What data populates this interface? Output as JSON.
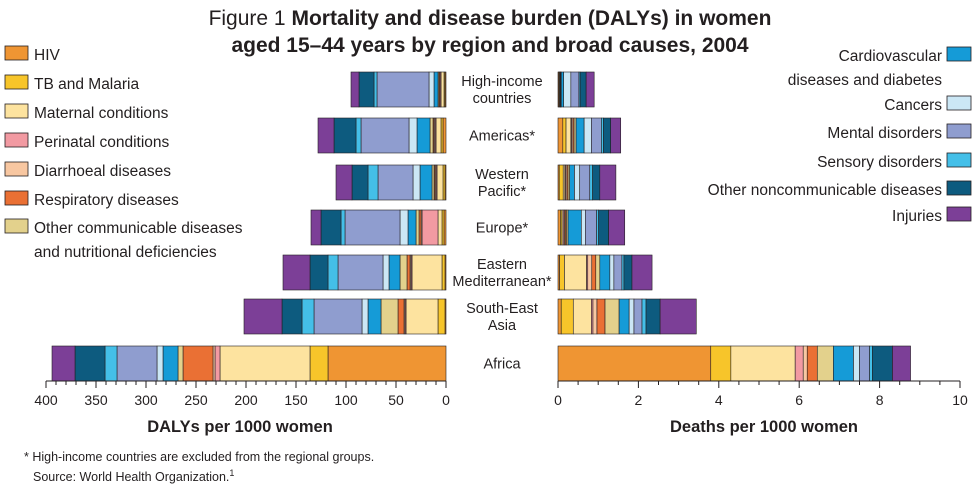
{
  "figure": {
    "title_prefix": "Figure 1",
    "title_line1_bold": "Mortality and disease burden (DALYs) in women",
    "title_line2_bold": "aged 15–44 years by region and broad causes, 2004",
    "footnote": "* High-income countries are excluded from the regional groups.",
    "source": "Source: World Health Organization.",
    "source_ref": "1"
  },
  "colors": {
    "hiv": "#ef9533",
    "tb_malaria": "#f7c52a",
    "maternal": "#fde39f",
    "perinatal": "#f29aa2",
    "diarrhoeal": "#f8c7a1",
    "respiratory": "#ea7034",
    "other_communicable": "#e3d18c",
    "cardiovascular": "#159bd7",
    "cancers": "#cbe7f5",
    "mental": "#8f9dcf",
    "sensory": "#44bfe8",
    "other_noncommunicable": "#0d5b7f",
    "injuries": "#7c3f97"
  },
  "chart_data": [
    {
      "type": "bar",
      "orientation": "horizontal",
      "stacked": true,
      "xlabel": "DALYs per 1000 women",
      "xlim": [
        0,
        400
      ],
      "x_reversed": true,
      "xticks": [
        400,
        350,
        300,
        250,
        200,
        150,
        100,
        50,
        0
      ],
      "categories": [
        "High-income countries",
        "Americas*",
        "Western Pacific*",
        "Europe*",
        "Eastern Mediterranean*",
        "South-East Asia",
        "Africa"
      ],
      "series": [
        {
          "name": "HIV",
          "key": "hiv",
          "values": [
            1,
            3,
            1,
            2,
            1,
            1,
            118
          ]
        },
        {
          "name": "TB and Malaria",
          "key": "tb_malaria",
          "values": [
            1,
            2,
            2,
            2,
            3,
            7,
            18
          ]
        },
        {
          "name": "Maternal conditions",
          "key": "maternal",
          "values": [
            3,
            5,
            6,
            4,
            30,
            32,
            90
          ]
        },
        {
          "name": "Perinatal conditions",
          "key": "perinatal",
          "values": [
            1,
            1,
            1,
            16,
            1,
            1,
            5
          ]
        },
        {
          "name": "Diarrhoeal diseases",
          "key": "diarrhoeal",
          "values": [
            0,
            1,
            1,
            1,
            1,
            1,
            2
          ]
        },
        {
          "name": "Respiratory diseases",
          "key": "respiratory",
          "values": [
            1,
            1,
            1,
            2,
            3,
            6,
            30
          ]
        },
        {
          "name": "Other communicable diseases and nutritional deficiencies",
          "key": "other_communicable",
          "values": [
            1,
            3,
            2,
            3,
            7,
            17,
            5
          ]
        },
        {
          "name": "Cardiovascular diseases and diabetes",
          "key": "cardiovascular",
          "values": [
            4,
            13,
            12,
            8,
            11,
            13,
            15
          ]
        },
        {
          "name": "Cancers",
          "key": "cancers",
          "values": [
            5,
            8,
            7,
            8,
            6,
            6,
            6
          ]
        },
        {
          "name": "Mental disorders",
          "key": "mental",
          "values": [
            52,
            48,
            35,
            55,
            45,
            48,
            40
          ]
        },
        {
          "name": "Sensory disorders",
          "key": "sensory",
          "values": [
            3,
            5,
            10,
            4,
            10,
            12,
            12
          ]
        },
        {
          "name": "Other noncommunicable diseases",
          "key": "other_noncommunicable",
          "values": [
            15,
            22,
            16,
            20,
            18,
            20,
            30
          ]
        },
        {
          "name": "Injuries",
          "key": "injuries",
          "values": [
            8,
            16,
            16,
            10,
            27,
            38,
            23
          ]
        }
      ]
    },
    {
      "type": "bar",
      "orientation": "horizontal",
      "stacked": true,
      "xlabel": "Deaths per 1000 women",
      "xlim": [
        0,
        10
      ],
      "xticks": [
        0,
        2,
        4,
        6,
        8,
        10
      ],
      "categories": [
        "High-income countries",
        "Americas*",
        "Western Pacific*",
        "Europe*",
        "Eastern Mediterranean*",
        "South-East Asia",
        "Africa"
      ],
      "series": [
        {
          "name": "HIV",
          "key": "hiv",
          "values": [
            0.02,
            0.12,
            0.03,
            0.06,
            0.04,
            0.08,
            3.8
          ]
        },
        {
          "name": "TB and Malaria",
          "key": "tb_malaria",
          "values": [
            0.01,
            0.08,
            0.1,
            0.04,
            0.12,
            0.3,
            0.5
          ]
        },
        {
          "name": "Maternal conditions",
          "key": "maternal",
          "values": [
            0.02,
            0.12,
            0.04,
            0.03,
            0.55,
            0.45,
            1.6
          ]
        },
        {
          "name": "Perinatal conditions",
          "key": "perinatal",
          "values": [
            0.01,
            0.02,
            0.02,
            0.03,
            0.03,
            0.04,
            0.2
          ]
        },
        {
          "name": "Diarrhoeal diseases",
          "key": "diarrhoeal",
          "values": [
            0,
            0.03,
            0.03,
            0.02,
            0.1,
            0.1,
            0.1
          ]
        },
        {
          "name": "Respiratory diseases",
          "key": "respiratory",
          "values": [
            0.01,
            0.03,
            0.03,
            0.03,
            0.1,
            0.2,
            0.25
          ]
        },
        {
          "name": "Other communicable diseases and nutritional deficiencies",
          "key": "other_communicable",
          "values": [
            0.01,
            0.05,
            0.04,
            0.04,
            0.1,
            0.35,
            0.4
          ]
        },
        {
          "name": "Cardiovascular diseases and diabetes",
          "key": "cardiovascular",
          "values": [
            0.06,
            0.2,
            0.12,
            0.33,
            0.25,
            0.25,
            0.5
          ]
        },
        {
          "name": "Cancers",
          "key": "cancers",
          "values": [
            0.18,
            0.18,
            0.13,
            0.1,
            0.1,
            0.12,
            0.15
          ]
        },
        {
          "name": "Mental disorders",
          "key": "mental",
          "values": [
            0.2,
            0.25,
            0.25,
            0.28,
            0.2,
            0.2,
            0.25
          ]
        },
        {
          "name": "Sensory disorders",
          "key": "sensory",
          "values": [
            0.03,
            0.05,
            0.07,
            0.05,
            0.05,
            0.1,
            0.07
          ]
        },
        {
          "name": "Other noncommunicable diseases",
          "key": "other_noncommunicable",
          "values": [
            0.15,
            0.18,
            0.18,
            0.25,
            0.2,
            0.35,
            0.5
          ]
        },
        {
          "name": "Injuries",
          "key": "injuries",
          "values": [
            0.2,
            0.25,
            0.4,
            0.4,
            0.5,
            0.9,
            0.45
          ]
        }
      ]
    }
  ],
  "legend_left": [
    {
      "key": "hiv",
      "lines": [
        "HIV"
      ]
    },
    {
      "key": "tb_malaria",
      "lines": [
        "TB and Malaria"
      ]
    },
    {
      "key": "maternal",
      "lines": [
        "Maternal conditions"
      ]
    },
    {
      "key": "perinatal",
      "lines": [
        "Perinatal conditions"
      ]
    },
    {
      "key": "diarrhoeal",
      "lines": [
        "Diarrhoeal diseases"
      ]
    },
    {
      "key": "respiratory",
      "lines": [
        "Respiratory diseases"
      ]
    },
    {
      "key": "other_communicable",
      "lines": [
        "Other communicable diseases",
        "and nutritional deficiencies"
      ]
    }
  ],
  "legend_right": [
    {
      "key": "cardiovascular",
      "lines": [
        "Cardiovascular",
        "diseases and diabetes"
      ]
    },
    {
      "key": "cancers",
      "lines": [
        "Cancers"
      ]
    },
    {
      "key": "mental",
      "lines": [
        "Mental disorders"
      ]
    },
    {
      "key": "sensory",
      "lines": [
        "Sensory disorders"
      ]
    },
    {
      "key": "other_noncommunicable",
      "lines": [
        "Other noncommunicable diseases"
      ]
    },
    {
      "key": "injuries",
      "lines": [
        "Injuries"
      ]
    }
  ],
  "region_labels": [
    [
      "High-income",
      "countries"
    ],
    [
      "Americas*"
    ],
    [
      "Western",
      "Pacific*"
    ],
    [
      "Europe*"
    ],
    [
      "Eastern",
      "Mediterranean*"
    ],
    [
      "South-East",
      "Asia"
    ],
    [
      "Africa"
    ]
  ]
}
